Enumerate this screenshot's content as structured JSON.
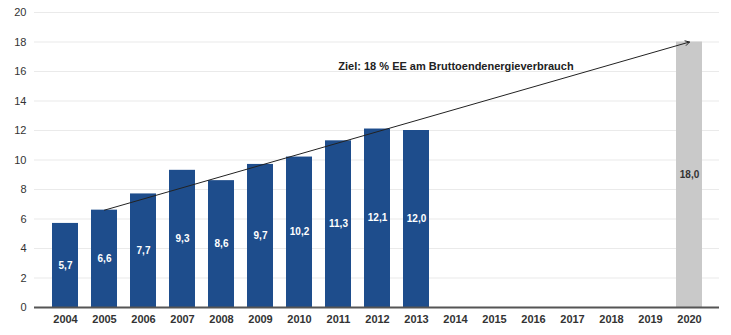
{
  "chart_data": {
    "type": "bar",
    "categories": [
      "2004",
      "2005",
      "2006",
      "2007",
      "2008",
      "2009",
      "2010",
      "2011",
      "2012",
      "2013",
      "2014",
      "2015",
      "2016",
      "2017",
      "2018",
      "2019",
      "2020"
    ],
    "values": [
      5.7,
      6.6,
      7.7,
      9.3,
      8.6,
      9.7,
      10.2,
      11.3,
      12.1,
      12.0,
      null,
      null,
      null,
      null,
      null,
      null,
      18.0
    ],
    "value_labels": [
      "5,7",
      "6,6",
      "7,7",
      "9,3",
      "8,6",
      "9,7",
      "10,2",
      "11,3",
      "12,1",
      "12,0",
      null,
      null,
      null,
      null,
      null,
      null,
      "18,0"
    ],
    "colors": [
      "#1e4d8c",
      "#1e4d8c",
      "#1e4d8c",
      "#1e4d8c",
      "#1e4d8c",
      "#1e4d8c",
      "#1e4d8c",
      "#1e4d8c",
      "#1e4d8c",
      "#1e4d8c",
      "#1e4d8c",
      "#1e4d8c",
      "#1e4d8c",
      "#1e4d8c",
      "#1e4d8c",
      "#1e4d8c",
      "#c9c9c9"
    ],
    "ylim": [
      0,
      20
    ],
    "yticks": [
      0,
      2,
      4,
      6,
      8,
      10,
      12,
      14,
      16,
      18,
      20
    ],
    "grid": true,
    "data_labels": true,
    "annotation": {
      "text": "Ziel: 18 % EE am Bruttoendenergieverbrauch",
      "categories": [
        "2005",
        "2020"
      ],
      "values": [
        6.6,
        18.0
      ]
    }
  }
}
